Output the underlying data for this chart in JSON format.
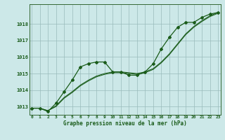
{
  "xlabel": "Graphe pression niveau de la mer (hPa)",
  "background_color": "#cce8e8",
  "plot_bg_color": "#cce8e8",
  "grid_color": "#99bbbb",
  "line_color": "#1a5c1a",
  "marker_color": "#1a5c1a",
  "x_ticks": [
    0,
    1,
    2,
    3,
    4,
    5,
    6,
    7,
    8,
    9,
    10,
    11,
    12,
    13,
    14,
    15,
    16,
    17,
    18,
    19,
    20,
    21,
    22,
    23
  ],
  "ylim": [
    1012.5,
    1019.2
  ],
  "yticks": [
    1013,
    1014,
    1015,
    1016,
    1017,
    1018
  ],
  "series": [
    [
      1012.9,
      1012.9,
      1012.7,
      1013.2,
      1013.9,
      1014.6,
      1015.4,
      1015.6,
      1015.7,
      1015.7,
      1015.1,
      1015.1,
      1014.9,
      1014.9,
      1015.1,
      1015.6,
      1016.5,
      1017.2,
      1017.8,
      1018.1,
      1018.1,
      1018.4,
      1018.6,
      1018.7
    ],
    [
      1012.9,
      1012.9,
      1012.75,
      1013.05,
      1013.55,
      1013.9,
      1014.3,
      1014.6,
      1014.85,
      1015.0,
      1015.1,
      1015.1,
      1015.05,
      1015.0,
      1015.1,
      1015.3,
      1015.7,
      1016.2,
      1016.8,
      1017.4,
      1017.85,
      1018.2,
      1018.5,
      1018.7
    ],
    [
      1012.9,
      1012.9,
      1012.75,
      1013.0,
      1013.5,
      1013.85,
      1014.25,
      1014.55,
      1014.8,
      1014.95,
      1015.05,
      1015.05,
      1015.0,
      1014.95,
      1015.05,
      1015.25,
      1015.65,
      1016.15,
      1016.75,
      1017.35,
      1017.8,
      1018.15,
      1018.45,
      1018.65
    ]
  ],
  "marker_series": [
    [
      1012.9,
      1012.9,
      1012.7,
      1013.2,
      1013.9,
      1014.6,
      1015.4,
      1015.6,
      1015.7,
      1015.7,
      1015.1,
      1015.1,
      1014.9,
      1014.9,
      1015.1,
      1015.6,
      1016.5,
      1017.2,
      1017.8,
      1018.1,
      1018.1,
      1018.4,
      1018.6,
      1018.7
    ]
  ]
}
